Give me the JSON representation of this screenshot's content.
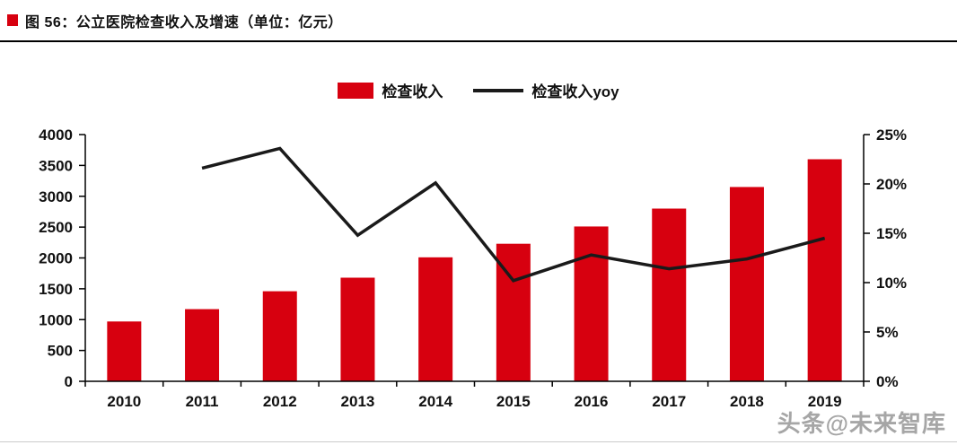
{
  "header": {
    "title": "图 56：公立医院检查收入及增速（单位：亿元）"
  },
  "watermark": "头条@未来智库",
  "chart_data": {
    "type": "bar",
    "subtype": "bar+line combo, dual axis",
    "title": "公立医院检查收入及增速（单位：亿元）",
    "categories": [
      "2010",
      "2011",
      "2012",
      "2013",
      "2014",
      "2015",
      "2016",
      "2017",
      "2018",
      "2019"
    ],
    "series": [
      {
        "name": "检查收入",
        "type": "bar",
        "axis": "left",
        "color": "#d7000f",
        "values": [
          970,
          1170,
          1460,
          1680,
          2010,
          2230,
          2510,
          2800,
          3150,
          3600
        ]
      },
      {
        "name": "检查收入yoy",
        "type": "line",
        "axis": "right",
        "color": "#1a1a1a",
        "values": [
          null,
          21.6,
          23.6,
          14.8,
          20.1,
          10.2,
          12.8,
          11.4,
          12.4,
          14.5
        ]
      }
    ],
    "left_axis": {
      "min": 0,
      "max": 4000,
      "tick_values": [
        0,
        500,
        1000,
        1500,
        2000,
        2500,
        3000,
        3500,
        4000
      ],
      "tick_labels": [
        "0",
        "500",
        "1000",
        "1500",
        "2000",
        "2500",
        "3000",
        "3500",
        "4000"
      ]
    },
    "right_axis": {
      "min": 0,
      "max": 25,
      "unit": "%",
      "tick_values": [
        0,
        5,
        10,
        15,
        20,
        25
      ],
      "tick_labels": [
        "0%",
        "5%",
        "10%",
        "15%",
        "20%",
        "25%"
      ]
    },
    "legend_position": "top-center",
    "grid": false
  }
}
